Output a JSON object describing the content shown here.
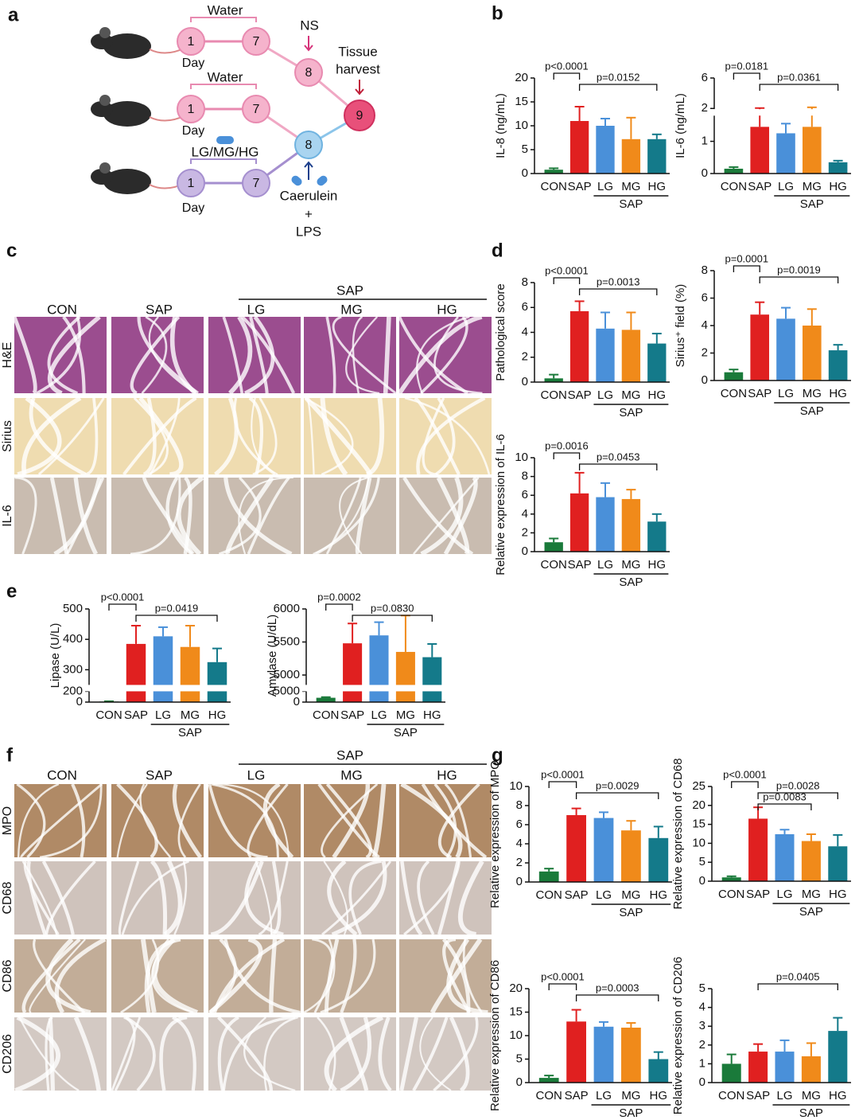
{
  "panels": [
    "a",
    "b",
    "c",
    "d",
    "e",
    "f",
    "g"
  ],
  "diagram": {
    "groups": [
      {
        "treatment": "Water",
        "day_label": "Day",
        "days": [
          "1",
          "7"
        ]
      },
      {
        "treatment": "Water",
        "day_label": "Day",
        "days": [
          "1",
          "7"
        ]
      },
      {
        "treatment": "LG/MG/HG",
        "day_label": "Day",
        "days": [
          "1",
          "7"
        ]
      }
    ],
    "control_step": {
      "day": "8",
      "label": "NS"
    },
    "model_step": {
      "day": "8",
      "label": [
        "Caerulein",
        "+",
        "LPS"
      ]
    },
    "harvest": {
      "day": "9",
      "label": [
        "Tissue",
        "harvest"
      ]
    }
  },
  "histology_c": {
    "group": "SAP",
    "columns": [
      "CON",
      "SAP",
      "LG",
      "MG",
      "HG"
    ],
    "rows": [
      "H&E",
      "Sirius",
      "IL-6"
    ]
  },
  "histology_f": {
    "group": "SAP",
    "columns": [
      "CON",
      "SAP",
      "LG",
      "MG",
      "HG"
    ],
    "rows": [
      "MPO",
      "CD68",
      "CD86",
      "CD206"
    ]
  },
  "chart_data": [
    {
      "type": "bar",
      "ylabel": "IL-8 (ng/mL)",
      "categories": [
        "CON",
        "SAP",
        "LG",
        "MG",
        "HG"
      ],
      "group_label": "SAP",
      "colors": [
        "#1a7a3a",
        "#e02020",
        "#4a90d9",
        "#f08a1a",
        "#147a8a"
      ],
      "values": [
        0.8,
        11,
        10,
        7.2,
        7.2
      ],
      "errors": [
        0.3,
        3,
        1.5,
        4.5,
        1
      ],
      "ylim": [
        0,
        20
      ],
      "yticks": [
        0,
        5,
        10,
        15,
        20
      ],
      "comparisons": [
        {
          "label": "p<0.0001",
          "between": [
            "CON",
            "SAP"
          ]
        },
        {
          "label": "p=0.0152",
          "between": [
            "SAP",
            "HG"
          ]
        }
      ]
    },
    {
      "type": "bar",
      "ylabel": "IL-6 (ng/mL)",
      "categories": [
        "CON",
        "SAP",
        "LG",
        "MG",
        "HG"
      ],
      "group_label": "SAP",
      "colors": [
        "#1a7a3a",
        "#e02020",
        "#4a90d9",
        "#f08a1a",
        "#147a8a"
      ],
      "values": [
        0.15,
        1.45,
        1.25,
        1.45,
        0.35
      ],
      "errors": [
        0.05,
        0.6,
        0.3,
        0.7,
        0.05
      ],
      "segments": [
        {
          "ylim": [
            0,
            1.8
          ],
          "yticks": [
            0,
            1
          ]
        },
        {
          "ylim": [
            1.9,
            6
          ],
          "yticks": [
            2,
            6
          ]
        }
      ],
      "comparisons": [
        {
          "label": "p=0.0181",
          "between": [
            "CON",
            "SAP"
          ]
        },
        {
          "label": "p=0.0361",
          "between": [
            "SAP",
            "HG"
          ]
        }
      ]
    },
    {
      "type": "bar",
      "ylabel": "Pathological score",
      "categories": [
        "CON",
        "SAP",
        "LG",
        "MG",
        "HG"
      ],
      "group_label": "SAP",
      "colors": [
        "#1a7a3a",
        "#e02020",
        "#4a90d9",
        "#f08a1a",
        "#147a8a"
      ],
      "values": [
        0.3,
        5.7,
        4.3,
        4.2,
        3.1
      ],
      "errors": [
        0.3,
        0.8,
        1.3,
        1.4,
        0.8
      ],
      "ylim": [
        0,
        8
      ],
      "yticks": [
        0,
        2,
        4,
        6,
        8
      ],
      "comparisons": [
        {
          "label": "p<0.0001",
          "between": [
            "CON",
            "SAP"
          ]
        },
        {
          "label": "p=0.0013",
          "between": [
            "SAP",
            "HG"
          ]
        }
      ]
    },
    {
      "type": "bar",
      "ylabel": "Sirius⁺ field (%)",
      "categories": [
        "CON",
        "SAP",
        "LG",
        "MG",
        "HG"
      ],
      "group_label": "SAP",
      "colors": [
        "#1a7a3a",
        "#e02020",
        "#4a90d9",
        "#f08a1a",
        "#147a8a"
      ],
      "values": [
        0.6,
        4.8,
        4.5,
        4,
        2.2
      ],
      "errors": [
        0.2,
        0.9,
        0.8,
        1.2,
        0.4
      ],
      "ylim": [
        0,
        8
      ],
      "yticks": [
        0,
        2,
        4,
        6,
        8
      ],
      "comparisons": [
        {
          "label": "p=0.0001",
          "between": [
            "CON",
            "SAP"
          ]
        },
        {
          "label": "p=0.0019",
          "between": [
            "SAP",
            "HG"
          ]
        }
      ]
    },
    {
      "type": "bar",
      "ylabel": "Relative expression of IL-6",
      "categories": [
        "CON",
        "SAP",
        "LG",
        "MG",
        "HG"
      ],
      "group_label": "SAP",
      "colors": [
        "#1a7a3a",
        "#e02020",
        "#4a90d9",
        "#f08a1a",
        "#147a8a"
      ],
      "values": [
        1,
        6.2,
        5.8,
        5.6,
        3.2
      ],
      "errors": [
        0.4,
        2.2,
        1.5,
        1,
        0.8
      ],
      "ylim": [
        0,
        10
      ],
      "yticks": [
        0,
        2,
        4,
        6,
        8,
        10
      ],
      "comparisons": [
        {
          "label": "p=0.0016",
          "between": [
            "CON",
            "SAP"
          ]
        },
        {
          "label": "p=0.0453",
          "between": [
            "SAP",
            "HG"
          ]
        }
      ]
    },
    {
      "type": "bar",
      "ylabel": "Lipase (U/L)",
      "categories": [
        "CON",
        "SAP",
        "LG",
        "MG",
        "HG"
      ],
      "group_label": "SAP",
      "colors": [
        "#1a7a3a",
        "#e02020",
        "#4a90d9",
        "#f08a1a",
        "#147a8a"
      ],
      "values": [
        10,
        385,
        410,
        375,
        325
      ],
      "errors": [
        5,
        60,
        30,
        70,
        45
      ],
      "segments": [
        {
          "ylim": [
            0,
            200
          ],
          "yticks": [
            0,
            200
          ]
        },
        {
          "ylim": [
            250,
            500
          ],
          "yticks": [
            300,
            400,
            500
          ]
        }
      ],
      "comparisons": [
        {
          "label": "p<0.0001",
          "between": [
            "CON",
            "SAP"
          ]
        },
        {
          "label": "p=0.0419",
          "between": [
            "SAP",
            "HG"
          ]
        }
      ]
    },
    {
      "type": "bar",
      "ylabel": "Amylase (U/dL)",
      "categories": [
        "CON",
        "SAP",
        "LG",
        "MG",
        "HG"
      ],
      "group_label": "SAP",
      "colors": [
        "#1a7a3a",
        "#e02020",
        "#4a90d9",
        "#f08a1a",
        "#147a8a"
      ],
      "values": [
        2000,
        5480,
        5600,
        5350,
        5270
      ],
      "errors": [
        300,
        300,
        200,
        550,
        200
      ],
      "segments": [
        {
          "ylim": [
            0,
            5000
          ],
          "yticks": [
            0,
            5000
          ]
        },
        {
          "ylim": [
            4850,
            6000
          ],
          "yticks": [
            5000,
            5500,
            6000
          ]
        }
      ],
      "comparisons": [
        {
          "label": "p=0.0002",
          "between": [
            "CON",
            "SAP"
          ]
        },
        {
          "label": "p=0.0830",
          "between": [
            "SAP",
            "HG"
          ]
        }
      ]
    },
    {
      "type": "bar",
      "ylabel": "Relative expression of MPO",
      "categories": [
        "CON",
        "SAP",
        "LG",
        "MG",
        "HG"
      ],
      "group_label": "SAP",
      "colors": [
        "#1a7a3a",
        "#e02020",
        "#4a90d9",
        "#f08a1a",
        "#147a8a"
      ],
      "values": [
        1.1,
        7,
        6.7,
        5.4,
        4.6
      ],
      "errors": [
        0.3,
        0.7,
        0.6,
        1,
        1.2
      ],
      "ylim": [
        0,
        10
      ],
      "yticks": [
        0,
        2,
        4,
        6,
        8,
        10
      ],
      "comparisons": [
        {
          "label": "p<0.0001",
          "between": [
            "CON",
            "SAP"
          ]
        },
        {
          "label": "p=0.0029",
          "between": [
            "SAP",
            "HG"
          ]
        }
      ]
    },
    {
      "type": "bar",
      "ylabel": "Relative expression of CD68",
      "categories": [
        "CON",
        "SAP",
        "LG",
        "MG",
        "HG"
      ],
      "group_label": "SAP",
      "colors": [
        "#1a7a3a",
        "#e02020",
        "#4a90d9",
        "#f08a1a",
        "#147a8a"
      ],
      "values": [
        1,
        16.5,
        12.4,
        10.6,
        9.2
      ],
      "errors": [
        0.3,
        3,
        1.2,
        1.8,
        3
      ],
      "ylim": [
        0,
        25
      ],
      "yticks": [
        0,
        5,
        10,
        15,
        20,
        25
      ],
      "comparisons": [
        {
          "label": "p<0.0001",
          "between": [
            "CON",
            "SAP"
          ]
        },
        {
          "label": "p=0.0028",
          "between": [
            "SAP",
            "HG"
          ]
        },
        {
          "label": "p=0.0083",
          "between": [
            "SAP",
            "MG"
          ]
        }
      ]
    },
    {
      "type": "bar",
      "ylabel": "Relative expression of CD86",
      "categories": [
        "CON",
        "SAP",
        "LG",
        "MG",
        "HG"
      ],
      "group_label": "SAP",
      "colors": [
        "#1a7a3a",
        "#e02020",
        "#4a90d9",
        "#f08a1a",
        "#147a8a"
      ],
      "values": [
        1,
        13,
        11.9,
        11.7,
        5
      ],
      "errors": [
        0.5,
        2.5,
        1,
        1,
        1.5
      ],
      "ylim": [
        0,
        20
      ],
      "yticks": [
        0,
        5,
        10,
        15,
        20
      ],
      "comparisons": [
        {
          "label": "p<0.0001",
          "between": [
            "CON",
            "SAP"
          ]
        },
        {
          "label": "p=0.0003",
          "between": [
            "SAP",
            "HG"
          ]
        }
      ]
    },
    {
      "type": "bar",
      "ylabel": "Relative expression of CD206",
      "categories": [
        "CON",
        "SAP",
        "LG",
        "MG",
        "HG"
      ],
      "group_label": "SAP",
      "colors": [
        "#1a7a3a",
        "#e02020",
        "#4a90d9",
        "#f08a1a",
        "#147a8a"
      ],
      "values": [
        1,
        1.65,
        1.65,
        1.4,
        2.75
      ],
      "errors": [
        0.5,
        0.4,
        0.6,
        0.7,
        0.7
      ],
      "ylim": [
        0,
        5
      ],
      "yticks": [
        0,
        1,
        2,
        3,
        4,
        5
      ],
      "comparisons": [
        {
          "label": "p=0.0405",
          "between": [
            "SAP",
            "HG"
          ]
        }
      ]
    }
  ]
}
